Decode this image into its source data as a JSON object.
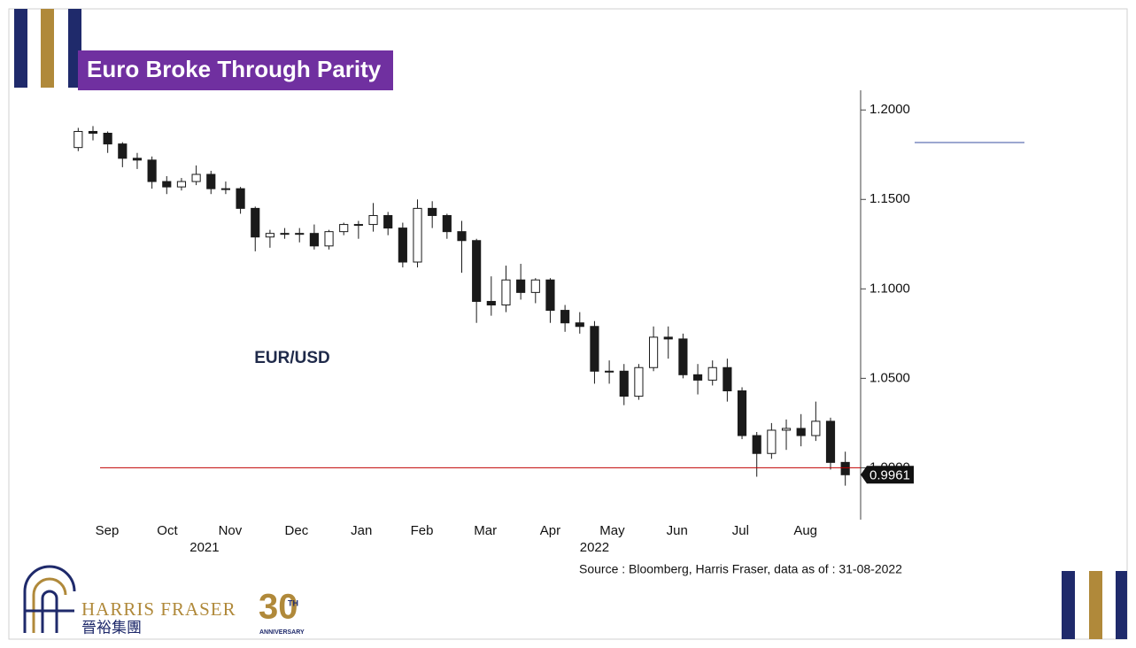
{
  "chart_data": {
    "type": "candlestick",
    "title": "Euro Broke Through Parity",
    "annotation": "EUR/USD",
    "source": "Source : Bloomberg, Harris Fraser, data as of : 31-08-2022",
    "x": [
      0,
      1,
      2,
      3,
      4,
      5,
      6,
      7,
      8,
      9,
      10,
      11,
      12,
      13,
      14,
      15,
      16,
      17,
      18,
      19,
      20,
      21,
      22,
      23,
      24,
      25,
      26,
      27,
      28,
      29,
      30,
      31,
      32,
      33,
      34,
      35,
      36,
      37,
      38,
      39,
      40,
      41,
      42,
      43,
      44,
      45,
      46,
      47,
      48,
      49,
      50,
      51,
      52
    ],
    "open": [
      1.179,
      1.188,
      1.187,
      1.181,
      1.173,
      1.172,
      1.16,
      1.157,
      1.16,
      1.164,
      1.156,
      1.156,
      1.145,
      1.129,
      1.131,
      1.131,
      1.131,
      1.124,
      1.132,
      1.136,
      1.136,
      1.141,
      1.134,
      1.115,
      1.145,
      1.141,
      1.132,
      1.127,
      1.093,
      1.091,
      1.105,
      1.098,
      1.105,
      1.088,
      1.081,
      1.079,
      1.054,
      1.054,
      1.04,
      1.056,
      1.073,
      1.072,
      1.052,
      1.049,
      1.056,
      1.043,
      1.018,
      1.008,
      1.021,
      1.022,
      1.018,
      1.026,
      1.003
    ],
    "high": [
      1.19,
      1.191,
      1.188,
      1.182,
      1.176,
      1.174,
      1.163,
      1.162,
      1.169,
      1.166,
      1.16,
      1.157,
      1.146,
      1.133,
      1.134,
      1.134,
      1.136,
      1.133,
      1.137,
      1.138,
      1.148,
      1.143,
      1.137,
      1.15,
      1.149,
      1.142,
      1.138,
      1.128,
      1.107,
      1.113,
      1.114,
      1.106,
      1.106,
      1.091,
      1.087,
      1.082,
      1.06,
      1.058,
      1.058,
      1.079,
      1.079,
      1.075,
      1.058,
      1.06,
      1.061,
      1.045,
      1.02,
      1.025,
      1.027,
      1.03,
      1.037,
      1.028,
      1.009
    ],
    "low": [
      1.177,
      1.183,
      1.176,
      1.168,
      1.167,
      1.156,
      1.153,
      1.155,
      1.158,
      1.153,
      1.153,
      1.142,
      1.121,
      1.123,
      1.128,
      1.126,
      1.122,
      1.122,
      1.13,
      1.128,
      1.132,
      1.13,
      1.112,
      1.112,
      1.134,
      1.128,
      1.109,
      1.081,
      1.085,
      1.087,
      1.094,
      1.092,
      1.081,
      1.076,
      1.075,
      1.047,
      1.047,
      1.035,
      1.038,
      1.054,
      1.061,
      1.05,
      1.041,
      1.046,
      1.037,
      1.016,
      0.995,
      1.005,
      1.01,
      1.012,
      1.015,
      0.999,
      0.99
    ],
    "close": [
      1.188,
      1.187,
      1.181,
      1.173,
      1.172,
      1.16,
      1.157,
      1.16,
      1.164,
      1.156,
      1.156,
      1.145,
      1.129,
      1.131,
      1.131,
      1.131,
      1.124,
      1.132,
      1.136,
      1.136,
      1.141,
      1.134,
      1.115,
      1.145,
      1.141,
      1.132,
      1.127,
      1.093,
      1.091,
      1.105,
      1.098,
      1.105,
      1.088,
      1.081,
      1.079,
      1.054,
      1.054,
      1.04,
      1.056,
      1.073,
      1.072,
      1.052,
      1.049,
      1.056,
      1.043,
      1.018,
      1.008,
      1.021,
      1.022,
      1.018,
      1.026,
      1.003,
      0.9961
    ],
    "xlim": [
      -0.5,
      52.5
    ],
    "xticks": [
      {
        "value": 1.96,
        "label": "Sep"
      },
      {
        "value": 6.04,
        "label": "Oct"
      },
      {
        "value": 10.3,
        "label": "Nov"
      },
      {
        "value": 14.8,
        "label": "Dec"
      },
      {
        "value": 19.2,
        "label": "Jan"
      },
      {
        "value": 23.3,
        "label": "Feb"
      },
      {
        "value": 27.6,
        "label": "Mar"
      },
      {
        "value": 32.0,
        "label": "Apr"
      },
      {
        "value": 36.2,
        "label": "May"
      },
      {
        "value": 40.6,
        "label": "Jun"
      },
      {
        "value": 44.9,
        "label": "Jul"
      },
      {
        "value": 49.3,
        "label": "Aug"
      }
    ],
    "year_ticks": [
      {
        "value": 8.56,
        "label": "2021"
      },
      {
        "value": 35.0,
        "label": "2022"
      }
    ],
    "ylim": [
      0.972,
      1.211
    ],
    "yticks": [
      {
        "value": 1.2,
        "label": "1.2000"
      },
      {
        "value": 1.15,
        "label": "1.1500"
      },
      {
        "value": 1.1,
        "label": "1.1000"
      },
      {
        "value": 1.05,
        "label": "1.0500"
      },
      {
        "value": 1.0,
        "label": "1.0000"
      }
    ],
    "reference_line": {
      "value": 1.0,
      "color": "#c00000"
    },
    "up_color": "#ffffff",
    "down_color": "#1a1a1a"
  },
  "branding": {
    "company": "HARRIS FRASER",
    "chinese": "晉裕集團",
    "badge": "30",
    "badge_sup": "TH",
    "badge_text": "ANNIVERSARY"
  }
}
